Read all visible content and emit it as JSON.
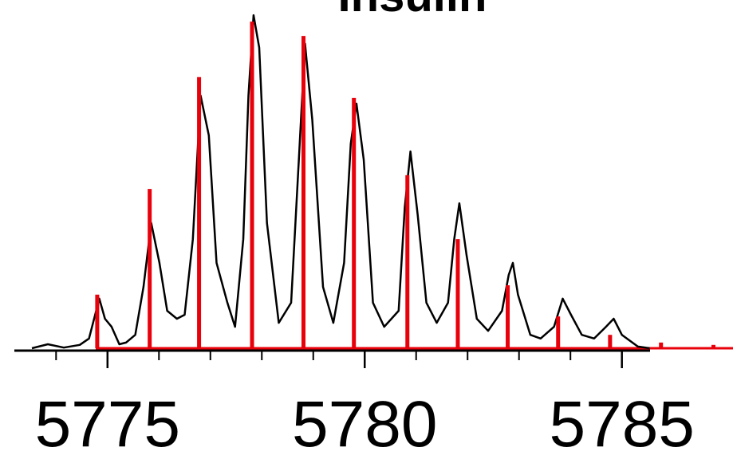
{
  "chart_data": {
    "type": "line",
    "title": "Insulin",
    "series": [
      {
        "type": "line",
        "color": "#000000",
        "x": [
          5773.53,
          5773.84,
          5774.15,
          5774.46,
          5774.64,
          5774.74,
          5774.84,
          5774.95,
          5775.08,
          5775.23,
          5775.36,
          5775.54,
          5775.7,
          5775.85,
          5776.01,
          5776.16,
          5776.35,
          5776.5,
          5776.66,
          5776.81,
          5776.97,
          5777.12,
          5777.33,
          5777.48,
          5777.64,
          5777.74,
          5777.84,
          5777.95,
          5778.1,
          5778.33,
          5778.57,
          5778.72,
          5778.84,
          5778.98,
          5779.19,
          5779.39,
          5779.6,
          5779.73,
          5779.84,
          5779.98,
          5780.16,
          5780.38,
          5780.66,
          5780.78,
          5780.89,
          5781.03,
          5781.2,
          5781.4,
          5781.62,
          5781.74,
          5781.84,
          5781.98,
          5782.18,
          5782.4,
          5782.67,
          5782.8,
          5782.88,
          5782.98,
          5783.22,
          5783.42,
          5783.68,
          5783.85,
          5784.01,
          5784.22,
          5784.46,
          5784.69,
          5784.84,
          5785.0,
          5785.31,
          5785.54
        ],
        "values": [
          0,
          1.2,
          0.2,
          1.0,
          2.9,
          8.8,
          14.8,
          8.8,
          6.4,
          1.2,
          1.7,
          4.0,
          18.3,
          37.4,
          25.5,
          11.2,
          8.8,
          10.0,
          32.6,
          75.5,
          63.6,
          25.5,
          13.6,
          6.4,
          32.6,
          75.5,
          99.5,
          89.8,
          37.4,
          7.6,
          13.6,
          56.4,
          91.0,
          68.3,
          18.3,
          7.6,
          25.5,
          61.2,
          73.1,
          56.4,
          13.6,
          6.4,
          11.2,
          42.1,
          58.8,
          39.8,
          13.6,
          7.6,
          13.6,
          32.6,
          43.3,
          27.9,
          8.8,
          5.2,
          11.2,
          21.9,
          25.5,
          16.0,
          4.0,
          2.9,
          6.4,
          14.8,
          10.0,
          4.0,
          2.9,
          6.4,
          8.8,
          4.0,
          0.5,
          0
        ]
      },
      {
        "type": "stick",
        "color": "#e8000b",
        "x": [
          5774.8,
          5775.82,
          5776.78,
          5777.81,
          5778.81,
          5779.79,
          5780.83,
          5781.81,
          5782.78,
          5783.76,
          5784.77,
          5785.76,
          5786.78
        ],
        "values": [
          16,
          47.6,
          81,
          97.6,
          93.3,
          74.8,
          51.7,
          32.6,
          18.8,
          9.5,
          4,
          1.7,
          1
        ]
      }
    ],
    "xlim": [
      5772.91,
      5787.16
    ],
    "ylim": [
      0,
      100
    ],
    "xticks": [
      5775,
      5780,
      5785
    ],
    "xminorticks": [
      5774,
      5776,
      5777,
      5778,
      5779,
      5781,
      5782,
      5783,
      5784
    ]
  }
}
